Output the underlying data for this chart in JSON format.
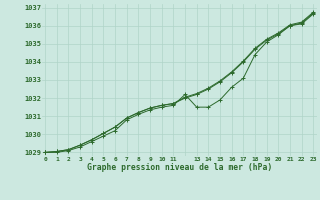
{
  "title": "Graphe pression niveau de la mer (hPa)",
  "bg_color": "#cce8e0",
  "grid_color": "#b0d4c8",
  "line_color": "#2d6a2d",
  "x_labels": [
    "0",
    "1",
    "2",
    "3",
    "4",
    "5",
    "6",
    "7",
    "8",
    "9",
    "1011",
    "",
    "1314",
    "1516",
    "1718",
    "1920",
    "2122",
    "23"
  ],
  "yticks": [
    1029,
    1030,
    1031,
    1032,
    1033,
    1034,
    1035,
    1036,
    1037
  ],
  "series_main": [
    1029.0,
    1029.0,
    1029.1,
    1029.3,
    1029.6,
    1029.9,
    1030.2,
    1030.8,
    1031.1,
    1031.35,
    1031.5,
    1031.6,
    1032.2,
    1031.5,
    1031.5,
    1031.9,
    1032.6,
    1033.1,
    1034.4,
    1035.1,
    1035.5,
    1036.0,
    1036.1,
    1036.65
  ],
  "series_smooth1": [
    1029.0,
    1029.05,
    1029.15,
    1029.4,
    1029.7,
    1030.05,
    1030.4,
    1030.9,
    1031.2,
    1031.45,
    1031.6,
    1031.7,
    1032.0,
    1032.2,
    1032.5,
    1032.9,
    1033.4,
    1034.0,
    1034.7,
    1035.2,
    1035.55,
    1036.0,
    1036.15,
    1036.7
  ],
  "series_smooth2": [
    1029.0,
    1029.05,
    1029.15,
    1029.4,
    1029.7,
    1030.05,
    1030.4,
    1030.9,
    1031.2,
    1031.45,
    1031.6,
    1031.7,
    1032.05,
    1032.25,
    1032.55,
    1032.95,
    1033.45,
    1034.05,
    1034.75,
    1035.25,
    1035.6,
    1036.05,
    1036.2,
    1036.75
  ],
  "xlim": [
    -0.3,
    23.3
  ],
  "ylim": [
    1028.8,
    1037.2
  ]
}
